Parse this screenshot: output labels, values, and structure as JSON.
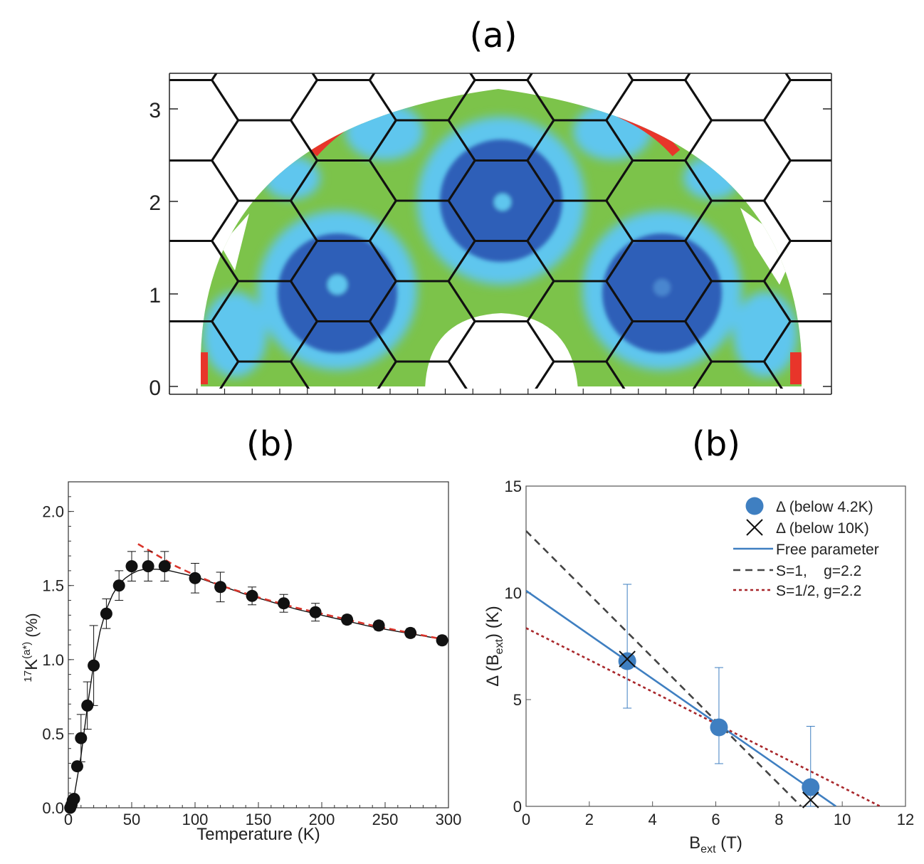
{
  "panel_labels": {
    "a": "(a)",
    "b_left": "(b)",
    "b_right": "(b)"
  },
  "colors": {
    "map_green": "#7cc34a",
    "map_cyan": "#5ec6ee",
    "map_blue": "#2f5fb8",
    "map_red": "#e8352a",
    "hex_line": "#111111",
    "marker_black": "#111111",
    "fit_red": "#d9342b",
    "blue_fit": "#3f7fc1",
    "gray_dash": "#444444",
    "dark_red_dot": "#a8262a"
  },
  "chart_data": [
    {
      "id": "a",
      "type": "heatmap",
      "title": "",
      "ylim": [
        0,
        3.3
      ],
      "ytick_labels": [
        "0",
        "1",
        "2",
        "3"
      ],
      "xlabel": "",
      "ylabel": ""
    },
    {
      "id": "b_left",
      "type": "scatter",
      "xlabel": "Temperature (K)",
      "ylabel_main": "K",
      "ylabel_pre": "17",
      "ylabel_sup": "(a*)",
      "ylabel_post": " (%)",
      "xlim": [
        0,
        300
      ],
      "ylim": [
        0,
        2.2
      ],
      "xticks": [
        0,
        50,
        100,
        150,
        200,
        250,
        300
      ],
      "xtick_labels": [
        "0",
        "50",
        "100",
        "150",
        "200",
        "250",
        "300"
      ],
      "yticks": [
        0,
        0.5,
        1.0,
        1.5,
        2.0
      ],
      "ytick_labels": [
        "0.0",
        "0.5",
        "1.0",
        "1.5",
        "2.0"
      ],
      "points": [
        {
          "x": 1.5,
          "y": 0.0,
          "err": 0.0
        },
        {
          "x": 2.5,
          "y": 0.02,
          "err": 0.0
        },
        {
          "x": 3.5,
          "y": 0.05,
          "err": 0.0
        },
        {
          "x": 4.5,
          "y": 0.06,
          "err": 0.0
        },
        {
          "x": 7,
          "y": 0.28,
          "err": 0.0
        },
        {
          "x": 10,
          "y": 0.47,
          "err": 0.16
        },
        {
          "x": 15,
          "y": 0.69,
          "err": 0.16
        },
        {
          "x": 20,
          "y": 0.96,
          "err": 0.27
        },
        {
          "x": 30,
          "y": 1.31,
          "err": 0.1
        },
        {
          "x": 40,
          "y": 1.5,
          "err": 0.1
        },
        {
          "x": 50,
          "y": 1.63,
          "err": 0.1
        },
        {
          "x": 63,
          "y": 1.63,
          "err": 0.1
        },
        {
          "x": 76,
          "y": 1.63,
          "err": 0.1
        },
        {
          "x": 100,
          "y": 1.55,
          "err": 0.1
        },
        {
          "x": 120,
          "y": 1.49,
          "err": 0.1
        },
        {
          "x": 145,
          "y": 1.43,
          "err": 0.06
        },
        {
          "x": 170,
          "y": 1.38,
          "err": 0.06
        },
        {
          "x": 195,
          "y": 1.32,
          "err": 0.06
        },
        {
          "x": 220,
          "y": 1.27,
          "err": 0.03
        },
        {
          "x": 245,
          "y": 1.23,
          "err": 0.03
        },
        {
          "x": 270,
          "y": 1.18,
          "err": 0.03
        },
        {
          "x": 295,
          "y": 1.13,
          "err": 0.03
        }
      ],
      "fit_black": {
        "x": [
          0,
          5,
          10,
          15,
          20,
          25,
          30,
          35,
          40,
          45,
          50,
          55,
          60,
          65,
          70,
          80,
          90,
          100,
          120,
          140,
          160,
          180,
          200,
          220,
          240,
          260,
          280,
          300
        ],
        "y": [
          0.0,
          0.1,
          0.35,
          0.68,
          0.97,
          1.19,
          1.34,
          1.44,
          1.51,
          1.55,
          1.58,
          1.6,
          1.61,
          1.61,
          1.61,
          1.6,
          1.58,
          1.56,
          1.5,
          1.44,
          1.39,
          1.34,
          1.3,
          1.26,
          1.22,
          1.19,
          1.16,
          1.13
        ]
      },
      "fit_red_dash": {
        "x": [
          55,
          65,
          75,
          85,
          100,
          120,
          150,
          180,
          210,
          240,
          270,
          300
        ],
        "y": [
          1.78,
          1.73,
          1.68,
          1.63,
          1.57,
          1.5,
          1.42,
          1.35,
          1.29,
          1.23,
          1.18,
          1.13
        ]
      }
    },
    {
      "id": "b_right",
      "type": "scatter",
      "xlabel_main": "B",
      "xlabel_sub": "ext",
      "xlabel_post": " (T)",
      "ylabel_pre": "Δ (B",
      "ylabel_sub": "ext",
      "ylabel_post": ") (K)",
      "xlim": [
        0,
        12
      ],
      "ylim": [
        0,
        15
      ],
      "xticks": [
        0,
        2,
        4,
        6,
        8,
        10,
        12
      ],
      "xtick_labels": [
        "0",
        "2",
        "4",
        "6",
        "8",
        "10",
        "12"
      ],
      "yticks": [
        0,
        5,
        10,
        15
      ],
      "ytick_labels": [
        "0",
        "5",
        "10",
        "15"
      ],
      "points_blue": [
        {
          "x": 3.2,
          "y": 6.8,
          "err_lo": 2.2,
          "err_hi": 3.6
        },
        {
          "x": 6.1,
          "y": 3.7,
          "err_lo": 1.7,
          "err_hi": 2.8
        },
        {
          "x": 9.0,
          "y": 0.9,
          "err_lo": 0.9,
          "err_hi": 2.85
        }
      ],
      "points_cross": [
        {
          "x": 3.2,
          "y": 6.9
        },
        {
          "x": 9.0,
          "y": 0.3
        }
      ],
      "lines": [
        {
          "name": "Free parameter",
          "style": "solid",
          "x": [
            0,
            9.8
          ],
          "y": [
            10.1,
            0
          ]
        },
        {
          "name": "S=1,    g=2.2",
          "style": "dashed",
          "x": [
            0,
            8.7
          ],
          "y": [
            12.9,
            0
          ]
        },
        {
          "name": "S=1/2, g=2.2",
          "style": "dotted",
          "x": [
            0,
            11.2
          ],
          "y": [
            8.35,
            0
          ]
        }
      ],
      "legend": {
        "position": "top-right",
        "entries": [
          "Δ (below 4.2K)",
          "Δ (below 10K)",
          "Free parameter",
          "S=1,    g=2.2",
          "S=1/2, g=2.2"
        ]
      }
    }
  ]
}
